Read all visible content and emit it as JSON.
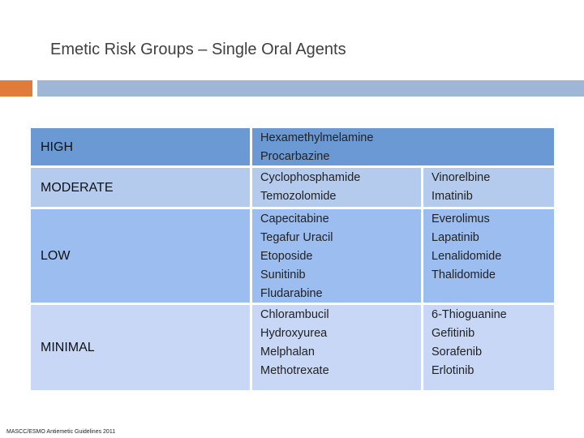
{
  "title": "Emetic Risk Groups – Single Oral Agents",
  "colors": {
    "accent_orange": "#e07b39",
    "accent_blue": "#9fb6d6",
    "high": "#6a99d4",
    "moderate": "#b5cbee",
    "low": "#9cbdef",
    "minimal": "#c7d7f5"
  },
  "rows": [
    {
      "category": "HIGH",
      "agents_col1": [
        "Hexamethylmelamine",
        "Procarbazine"
      ],
      "agents_col2": []
    },
    {
      "category": "MODERATE",
      "agents_col1": [
        "Cyclophosphamide",
        "Temozolomide"
      ],
      "agents_col2": [
        "Vinorelbine",
        "Imatinib"
      ]
    },
    {
      "category": "LOW",
      "agents_col1": [
        "Capecitabine",
        "Tegafur Uracil",
        "Etoposide",
        "Sunitinib",
        "Fludarabine"
      ],
      "agents_col2": [
        "Everolimus",
        "Lapatinib",
        "Lenalidomide",
        "Thalidomide"
      ]
    },
    {
      "category": "MINIMAL",
      "agents_col1": [
        "Chlorambucil",
        "Hydroxyurea",
        "Melphalan",
        "Methotrexate"
      ],
      "agents_col2": [
        "6-Thioguanine",
        "Gefitinib",
        "Sorafenib",
        "Erlotinib"
      ]
    }
  ],
  "footnote": "MASCC/ESMO Antiemetic Guidelines 2011"
}
